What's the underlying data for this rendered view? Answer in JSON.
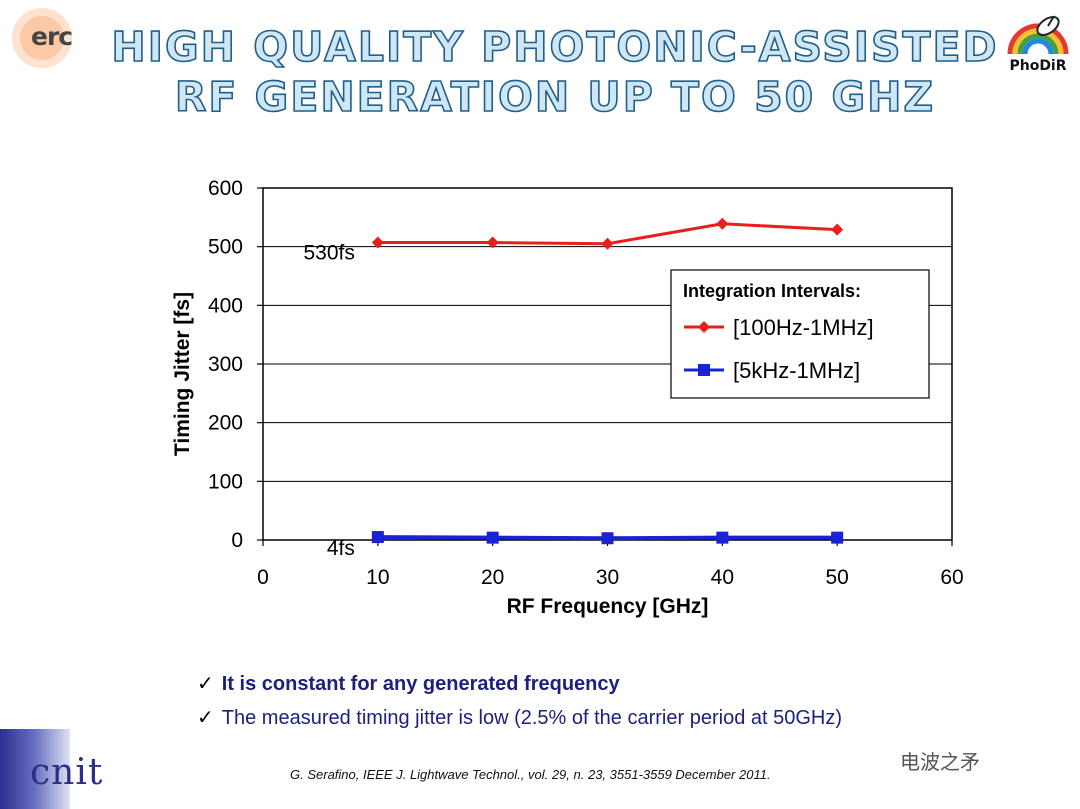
{
  "header": {
    "logo_left": "erc",
    "title_line1": "HIGH QUALITY PHOTONIC-ASSISTED",
    "title_line2": "RF GENERATION UP TO 50 GHZ",
    "logo_right": "PhoDiR"
  },
  "chart_data": {
    "type": "line",
    "xlabel": "RF Frequency [GHz]",
    "ylabel": "Timing Jitter [fs]",
    "xlim": [
      0,
      60
    ],
    "ylim": [
      0,
      600
    ],
    "xticks": [
      "0",
      "10",
      "20",
      "30",
      "40",
      "50",
      "60"
    ],
    "yticks": [
      "0",
      "100",
      "200",
      "300",
      "400",
      "500",
      "600"
    ],
    "grid": true,
    "legend_title": "Integration Intervals:",
    "legend_position": "right",
    "series": [
      {
        "name": "[100Hz-1MHz]",
        "color": "#e8201c",
        "marker": "diamond",
        "x": [
          10,
          20,
          30,
          40,
          50
        ],
        "values": [
          507,
          507,
          505,
          539,
          529
        ]
      },
      {
        "name": "[5kHz-1MHz]",
        "color": "#1a22d6",
        "marker": "square",
        "x": [
          10,
          20,
          30,
          40,
          50
        ],
        "values": [
          5,
          4,
          3,
          4,
          4
        ]
      }
    ],
    "annotations": [
      {
        "text": "530fs",
        "x": 8,
        "y": 490
      },
      {
        "text": "4fs",
        "x": 8,
        "y": -14
      }
    ]
  },
  "bullets": [
    {
      "check": "✓",
      "text": "It is constant for any generated frequency"
    },
    {
      "check": "✓",
      "text": "The measured timing jitter is low (2.5% of the carrier period at 50GHz)"
    }
  ],
  "footer": {
    "logo_bottom": "cnit",
    "citation": "G. Serafino, IEEE J. Lightwave Technol., vol. 29, n. 23, 3551-3559 December 2011.",
    "watermark": "电波之矛"
  }
}
